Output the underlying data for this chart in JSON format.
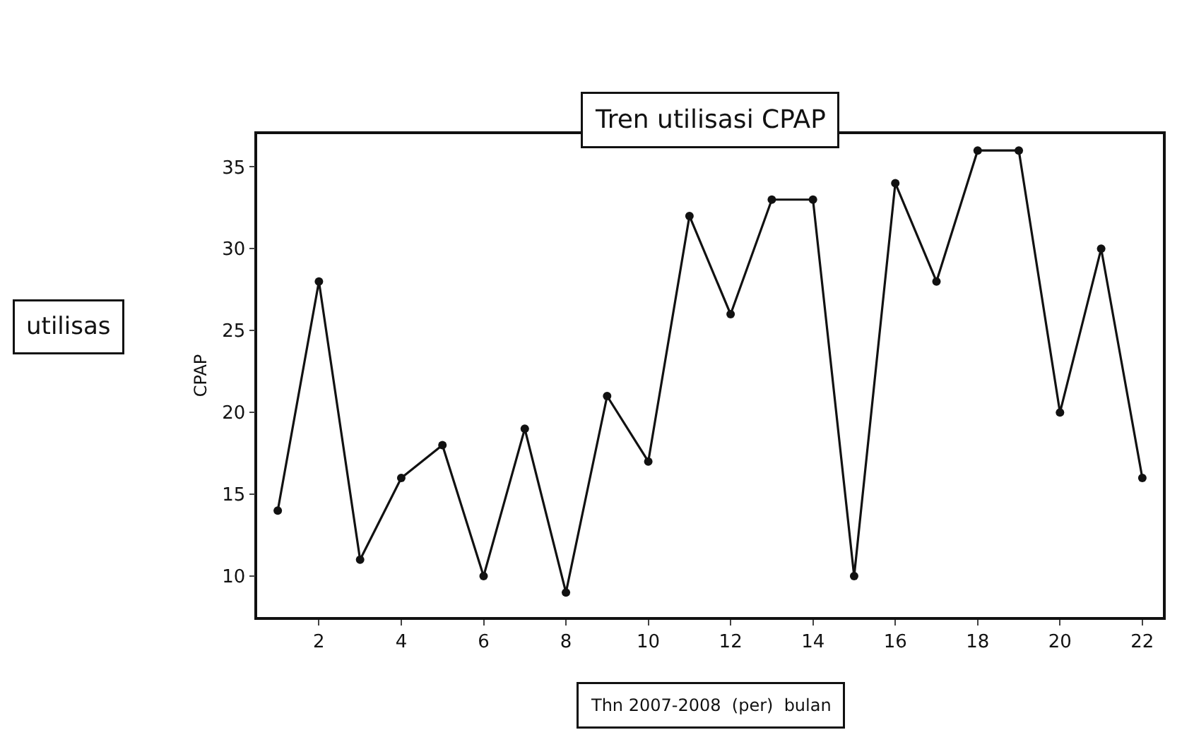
{
  "chart_data": {
    "type": "line",
    "title": "Tren utilisasi CPAP",
    "xlabel": "Thn 2007-2008  (per)  bulan",
    "ylabel": "CPAP",
    "annotations": [
      "utilisas"
    ],
    "x": [
      1,
      2,
      3,
      4,
      5,
      6,
      7,
      8,
      9,
      10,
      11,
      12,
      13,
      14,
      15,
      16,
      17,
      18,
      19,
      20,
      21,
      22
    ],
    "series": [
      {
        "color": "#111111",
        "values": [
          14,
          28,
          11,
          16,
          18,
          10,
          19,
          9,
          21,
          17,
          32,
          26,
          33,
          33,
          10,
          34,
          28,
          36,
          36,
          20,
          30,
          16
        ]
      }
    ],
    "xlim": [
      0.5,
      22.5
    ],
    "xticks": [
      2,
      4,
      6,
      8,
      10,
      12,
      14,
      16,
      18,
      20,
      22
    ],
    "ylim": [
      7.5,
      37
    ],
    "yticks": [
      10,
      15,
      20,
      25,
      30,
      35
    ],
    "grid": false,
    "marker": "circle",
    "line_style": "solid"
  }
}
